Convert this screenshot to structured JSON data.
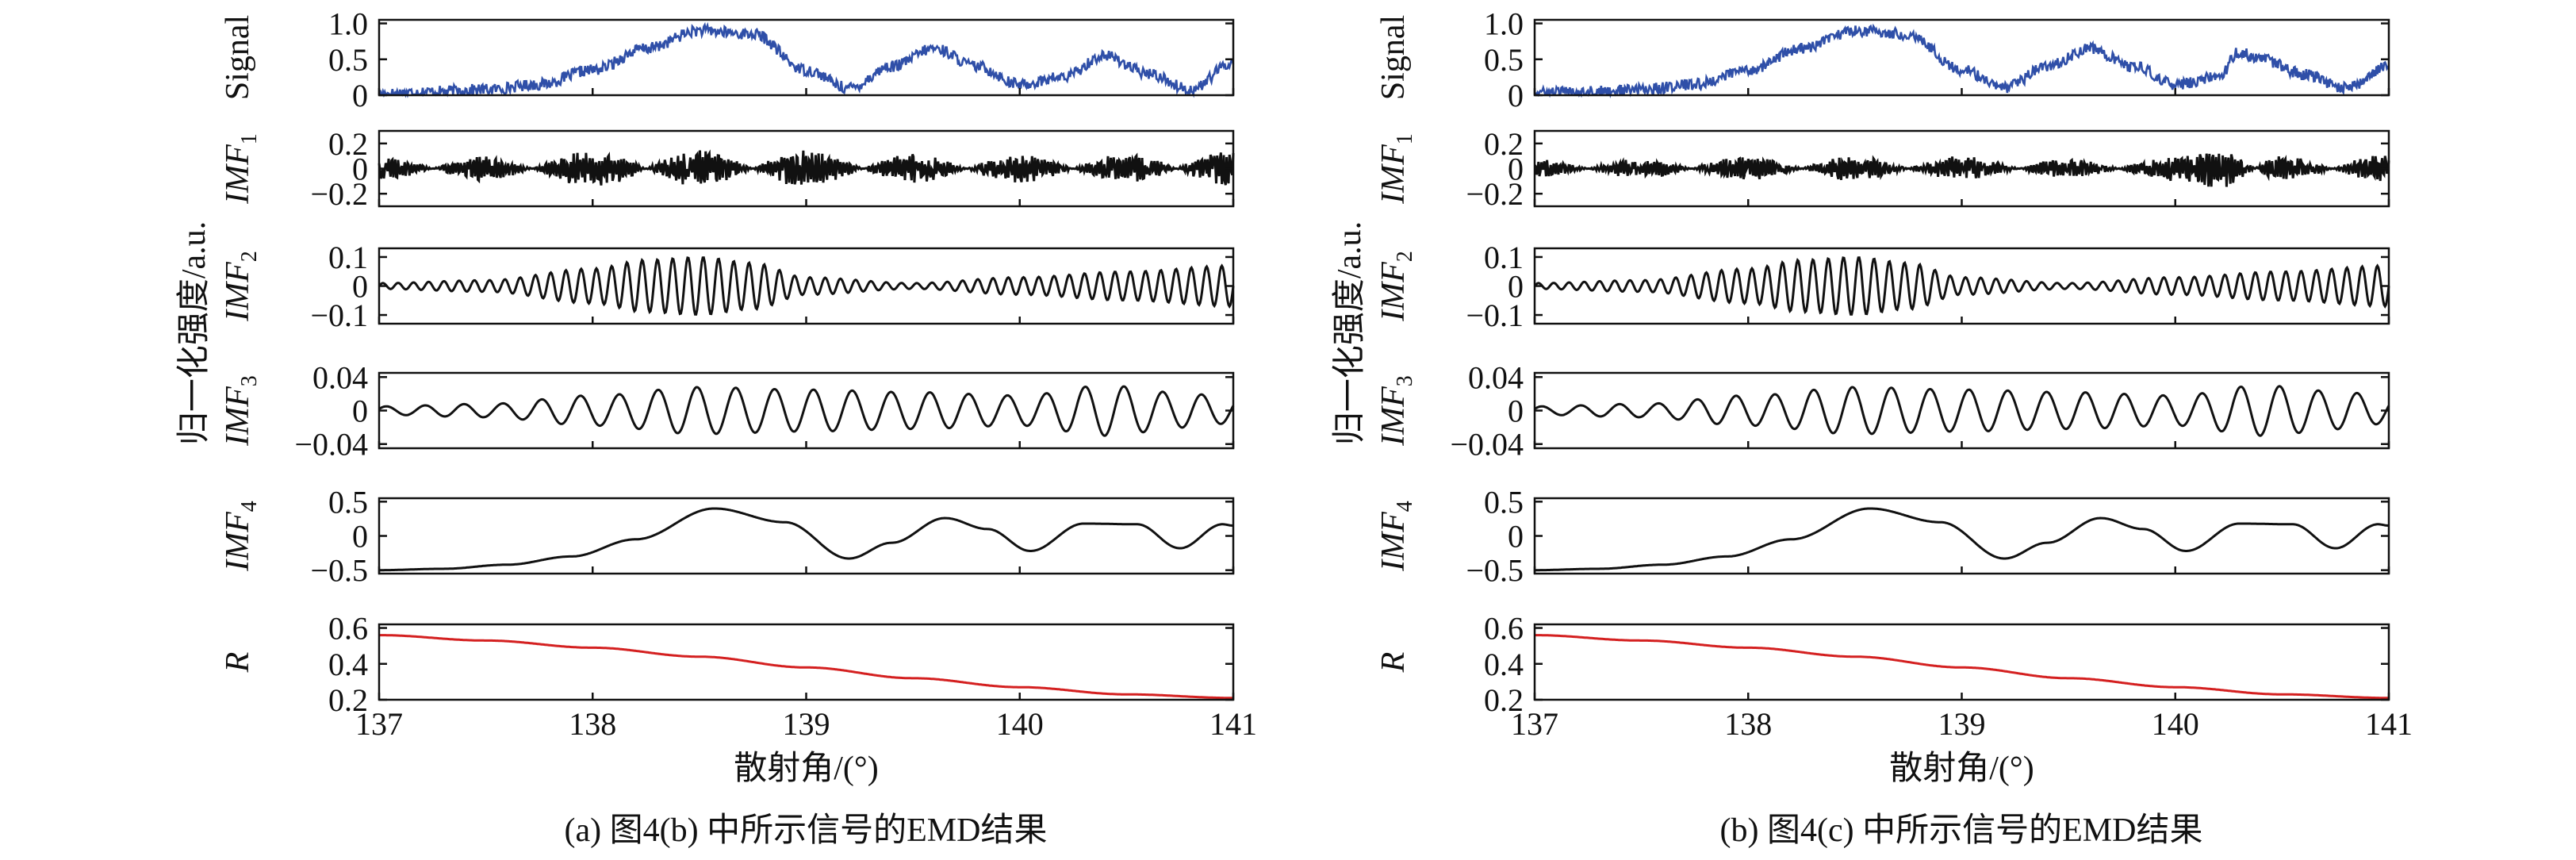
{
  "figure": {
    "captions": [
      "(a) 图4(b) 中所示信号的EMD结果",
      "(b) 图4(c) 中所示信号的EMD结果"
    ],
    "common_ylabel": "归一化强度/a.u.",
    "common_xlabel": "散射角/(°)"
  },
  "chart_data": [
    {
      "type": "line",
      "caption": "(a) 图4(b) 中所示信号的EMD结果",
      "xlabel": "散射角/(°)",
      "ylabel": "归一化强度/a.u.",
      "xlim": [
        137,
        141
      ],
      "xticks": [
        "137",
        "138",
        "139",
        "140",
        "141"
      ],
      "panels": [
        {
          "id": "signal",
          "label": "Signal",
          "label_sub": "",
          "italic": false,
          "ylim": [
            0,
            1.05
          ],
          "yticks": [
            {
              "v": 1.0,
              "t": "1.0"
            },
            {
              "v": 0.5,
              "t": "0.5"
            },
            {
              "v": 0,
              "t": "0"
            }
          ],
          "color": "#2f4fa8",
          "x": [
            137.0,
            137.25,
            137.5,
            137.75,
            138.0,
            138.25,
            138.5,
            138.75,
            139.0,
            139.2,
            139.4,
            139.6,
            139.8,
            140.0,
            140.2,
            140.4,
            140.6,
            140.8,
            141.0
          ],
          "y": [
            0.02,
            0.05,
            0.08,
            0.15,
            0.35,
            0.65,
            0.9,
            0.85,
            0.35,
            0.1,
            0.4,
            0.65,
            0.4,
            0.15,
            0.25,
            0.55,
            0.3,
            0.08,
            0.45
          ]
        },
        {
          "id": "imf1",
          "label": "IMF",
          "label_sub": "1",
          "italic": true,
          "ylim": [
            -0.3,
            0.3
          ],
          "yticks": [
            {
              "v": 0.2,
              "t": "0.2"
            },
            {
              "v": 0,
              "t": "0"
            },
            {
              "v": -0.2,
              "t": "−0.2"
            }
          ],
          "color": "#111111",
          "x": [
            137.0,
            137.5,
            138.0,
            138.5,
            139.0,
            139.5,
            140.0,
            140.5,
            141.0
          ],
          "y": [
            0.1,
            -0.1,
            0.15,
            -0.15,
            0.15,
            -0.12,
            0.12,
            -0.12,
            0.15
          ]
        },
        {
          "id": "imf2",
          "label": "IMF",
          "label_sub": "2",
          "italic": true,
          "ylim": [
            -0.13,
            0.13
          ],
          "yticks": [
            {
              "v": 0.1,
              "t": "0.1"
            },
            {
              "v": 0,
              "t": "0"
            },
            {
              "v": -0.1,
              "t": "−0.1"
            }
          ],
          "color": "#111111",
          "x": [
            137.0,
            137.5,
            138.0,
            138.25,
            138.5,
            138.75,
            139.0,
            139.5,
            140.0,
            140.5,
            141.0
          ],
          "y": [
            0.01,
            0.02,
            0.06,
            0.09,
            0.1,
            0.08,
            0.03,
            0.01,
            0.03,
            0.05,
            0.07
          ]
        },
        {
          "id": "imf3",
          "label": "IMF",
          "label_sub": "3",
          "italic": true,
          "ylim": [
            -0.045,
            0.045
          ],
          "yticks": [
            {
              "v": 0.04,
              "t": "0.04"
            },
            {
              "v": 0,
              "t": "0"
            },
            {
              "v": -0.04,
              "t": "−0.04"
            }
          ],
          "color": "#111111",
          "x": [
            137.0,
            137.5,
            138.0,
            138.5,
            139.0,
            139.5,
            140.0,
            140.4,
            140.8,
            141.0
          ],
          "y": [
            0.005,
            0.008,
            0.018,
            0.028,
            0.025,
            0.022,
            0.018,
            0.03,
            0.02,
            0.015
          ]
        },
        {
          "id": "imf4",
          "label": "IMF",
          "label_sub": "4",
          "italic": true,
          "ylim": [
            -0.55,
            0.55
          ],
          "yticks": [
            {
              "v": 0.5,
              "t": "0.5"
            },
            {
              "v": 0,
              "t": "0"
            },
            {
              "v": -0.5,
              "t": "−0.5"
            }
          ],
          "color": "#111111",
          "x": [
            137.0,
            137.3,
            137.6,
            137.9,
            138.2,
            138.57,
            138.9,
            139.2,
            139.4,
            139.65,
            139.85,
            140.05,
            140.3,
            140.55,
            140.75,
            140.95,
            141.0
          ],
          "y": [
            -0.5,
            -0.48,
            -0.42,
            -0.3,
            -0.05,
            0.4,
            0.2,
            -0.33,
            -0.1,
            0.26,
            0.1,
            -0.22,
            0.18,
            0.17,
            -0.18,
            0.17,
            0.15
          ]
        },
        {
          "id": "r",
          "label": "R",
          "label_sub": "",
          "italic": true,
          "ylim": [
            0.2,
            0.62
          ],
          "yticks": [
            {
              "v": 0.6,
              "t": "0.6"
            },
            {
              "v": 0.4,
              "t": "0.4"
            },
            {
              "v": 0.2,
              "t": "0.2"
            }
          ],
          "color": "#d42020",
          "x": [
            137.0,
            137.5,
            138.0,
            138.5,
            139.0,
            139.5,
            140.0,
            140.5,
            141.0
          ],
          "y": [
            0.56,
            0.53,
            0.49,
            0.44,
            0.38,
            0.32,
            0.27,
            0.23,
            0.21
          ]
        }
      ]
    },
    {
      "type": "line",
      "caption": "(b) 图4(c) 中所示信号的EMD结果",
      "xlabel": "散射角/(°)",
      "ylabel": "归一化强度/a.u.",
      "xlim": [
        137,
        141
      ],
      "xticks": [
        "137",
        "138",
        "139",
        "140",
        "141"
      ],
      "panels": [
        {
          "id": "signal",
          "label": "Signal",
          "label_sub": "",
          "italic": false,
          "ylim": [
            0,
            1.05
          ],
          "yticks": [
            {
              "v": 1.0,
              "t": "1.0"
            },
            {
              "v": 0.5,
              "t": "0.5"
            },
            {
              "v": 0,
              "t": "0"
            }
          ],
          "color": "#2f4fa8",
          "x": [
            137.0,
            137.25,
            137.5,
            137.75,
            138.0,
            138.25,
            138.5,
            138.75,
            139.0,
            139.2,
            139.4,
            139.6,
            139.8,
            140.0,
            140.2,
            140.3,
            140.4,
            140.6,
            140.8,
            141.0
          ],
          "y": [
            0.03,
            0.05,
            0.08,
            0.15,
            0.35,
            0.65,
            0.9,
            0.85,
            0.35,
            0.1,
            0.4,
            0.65,
            0.4,
            0.15,
            0.25,
            0.6,
            0.5,
            0.3,
            0.1,
            0.4
          ]
        },
        {
          "id": "imf1",
          "label": "IMF",
          "label_sub": "1",
          "italic": true,
          "ylim": [
            -0.3,
            0.3
          ],
          "yticks": [
            {
              "v": 0.2,
              "t": "0.2"
            },
            {
              "v": 0,
              "t": "0"
            },
            {
              "v": -0.2,
              "t": "−0.2"
            }
          ],
          "color": "#111111",
          "x": [
            137.0,
            137.5,
            138.0,
            138.5,
            139.0,
            139.5,
            140.0,
            140.2,
            140.5,
            141.0
          ],
          "y": [
            0.08,
            -0.08,
            0.1,
            -0.1,
            0.1,
            -0.08,
            0.1,
            0.16,
            -0.1,
            0.12
          ]
        },
        {
          "id": "imf2",
          "label": "IMF",
          "label_sub": "2",
          "italic": true,
          "ylim": [
            -0.13,
            0.13
          ],
          "yticks": [
            {
              "v": 0.1,
              "t": "0.1"
            },
            {
              "v": 0,
              "t": "0"
            },
            {
              "v": -0.1,
              "t": "−0.1"
            }
          ],
          "color": "#111111",
          "x": [
            137.0,
            137.5,
            138.0,
            138.25,
            138.5,
            138.75,
            139.0,
            139.5,
            140.0,
            140.5,
            141.0
          ],
          "y": [
            0.01,
            0.02,
            0.06,
            0.09,
            0.1,
            0.08,
            0.03,
            0.01,
            0.03,
            0.05,
            0.07
          ]
        },
        {
          "id": "imf3",
          "label": "IMF",
          "label_sub": "3",
          "italic": true,
          "ylim": [
            -0.045,
            0.045
          ],
          "yticks": [
            {
              "v": 0.04,
              "t": "0.04"
            },
            {
              "v": 0,
              "t": "0"
            },
            {
              "v": -0.04,
              "t": "−0.04"
            }
          ],
          "color": "#111111",
          "x": [
            137.0,
            137.5,
            138.0,
            138.5,
            139.0,
            139.5,
            140.0,
            140.4,
            140.8,
            141.0
          ],
          "y": [
            0.005,
            0.008,
            0.018,
            0.028,
            0.025,
            0.022,
            0.018,
            0.03,
            0.022,
            0.015
          ]
        },
        {
          "id": "imf4",
          "label": "IMF",
          "label_sub": "4",
          "italic": true,
          "ylim": [
            -0.55,
            0.55
          ],
          "yticks": [
            {
              "v": 0.5,
              "t": "0.5"
            },
            {
              "v": 0,
              "t": "0"
            },
            {
              "v": -0.5,
              "t": "−0.5"
            }
          ],
          "color": "#111111",
          "x": [
            137.0,
            137.3,
            137.6,
            137.9,
            138.2,
            138.57,
            138.9,
            139.2,
            139.4,
            139.65,
            139.85,
            140.05,
            140.3,
            140.55,
            140.75,
            140.95,
            141.0
          ],
          "y": [
            -0.5,
            -0.48,
            -0.42,
            -0.3,
            -0.05,
            0.4,
            0.2,
            -0.33,
            -0.1,
            0.26,
            0.1,
            -0.22,
            0.18,
            0.17,
            -0.18,
            0.17,
            0.15
          ]
        },
        {
          "id": "r",
          "label": "R",
          "label_sub": "",
          "italic": true,
          "ylim": [
            0.2,
            0.62
          ],
          "yticks": [
            {
              "v": 0.6,
              "t": "0.6"
            },
            {
              "v": 0.4,
              "t": "0.4"
            },
            {
              "v": 0.2,
              "t": "0.2"
            }
          ],
          "color": "#d42020",
          "x": [
            137.0,
            137.5,
            138.0,
            138.5,
            139.0,
            139.5,
            140.0,
            140.5,
            141.0
          ],
          "y": [
            0.56,
            0.53,
            0.49,
            0.44,
            0.38,
            0.32,
            0.27,
            0.23,
            0.21
          ]
        }
      ]
    }
  ]
}
